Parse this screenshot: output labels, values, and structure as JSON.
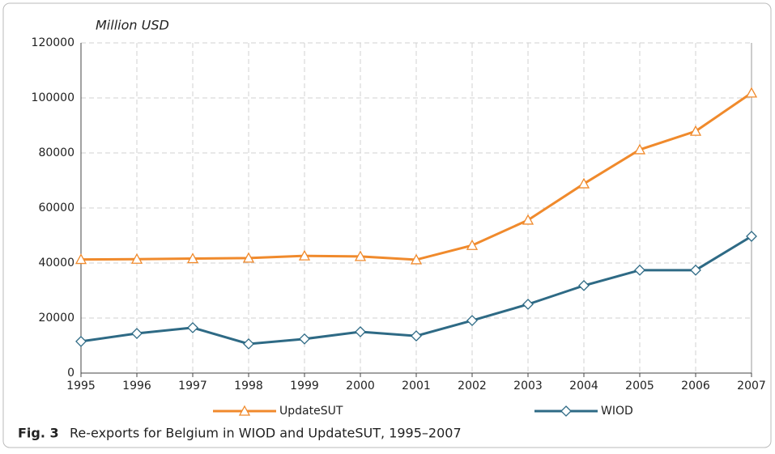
{
  "chart_data": {
    "type": "line",
    "y_axis_label": "Million USD",
    "caption_label": "Fig. 3",
    "caption": "Re-exports for Belgium in WIOD and UpdateSUT, 1995–2007",
    "x": [
      1995,
      1996,
      1997,
      1998,
      1999,
      2000,
      2001,
      2002,
      2003,
      2004,
      2005,
      2006,
      2007
    ],
    "xlim": [
      1995,
      2007
    ],
    "xticks": [
      1995,
      1996,
      1997,
      1998,
      1999,
      2000,
      2001,
      2002,
      2003,
      2004,
      2005,
      2006,
      2007
    ],
    "ylim": [
      0,
      120000
    ],
    "yticks": [
      0,
      20000,
      40000,
      60000,
      80000,
      100000,
      120000
    ],
    "grid": true,
    "legend": "bottom",
    "series": [
      {
        "name": "UpdateSUT",
        "color": "#f08a2c",
        "marker": "triangle",
        "values": [
          41300,
          41400,
          41600,
          41800,
          42600,
          42400,
          41200,
          46400,
          55600,
          68800,
          81200,
          87900,
          101800
        ]
      },
      {
        "name": "WIOD",
        "color": "#2e6a85",
        "marker": "diamond",
        "values": [
          11500,
          14400,
          16500,
          10600,
          12400,
          15000,
          13500,
          19100,
          25000,
          31800,
          37400,
          37400,
          49700
        ]
      }
    ]
  }
}
